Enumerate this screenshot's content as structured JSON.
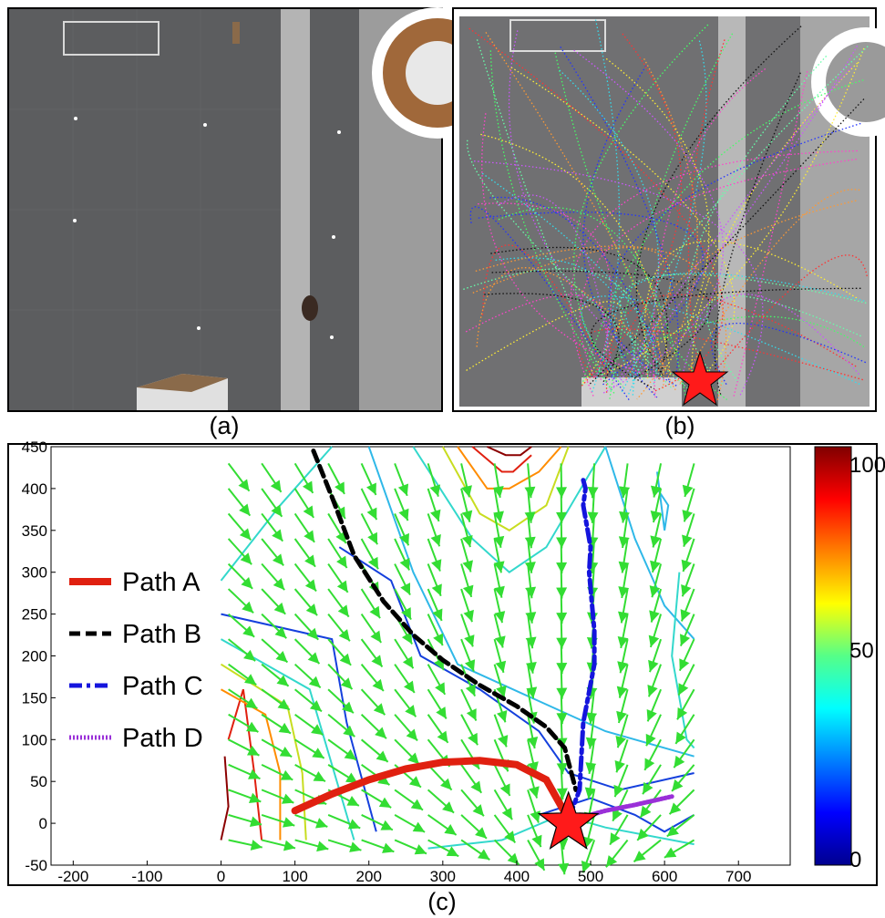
{
  "captions": {
    "a": "(a)",
    "b": "(b)",
    "c": "(c)"
  },
  "colors": {
    "floor": "#5c5d5f",
    "walkway": "#b4b4b4",
    "arrow": "#33dd33",
    "path_a": "#e02010",
    "path_b": "#000000",
    "path_c": "#1515dd",
    "path_d": "#9a30d8",
    "star": "#ff1a1a"
  },
  "chart_data": {
    "type": "contour",
    "title": "",
    "xlabel": "",
    "ylabel": "",
    "xlim": [
      -230,
      770
    ],
    "ylim": [
      -50,
      450
    ],
    "xticks": [
      "-200",
      "-100",
      "0",
      "100",
      "200",
      "300",
      "400",
      "500",
      "600",
      "700"
    ],
    "yticks": [
      "450",
      "400",
      "350",
      "300",
      "250",
      "200",
      "150",
      "100",
      "50",
      "0",
      "-50"
    ],
    "legend_position": "left",
    "legend": [
      {
        "label": "Path A",
        "style": "solid",
        "color": "#e02010"
      },
      {
        "label": "Path B",
        "style": "dashed",
        "color": "#000000"
      },
      {
        "label": "Path C",
        "style": "dash-dot",
        "color": "#1515dd"
      },
      {
        "label": "Path D",
        "style": "dotted",
        "color": "#9a30d8"
      }
    ],
    "series": [
      {
        "name": "Path A",
        "x": [
          100,
          150,
          200,
          250,
          300,
          350,
          400,
          440,
          470
        ],
        "y": [
          15,
          35,
          52,
          65,
          73,
          75,
          70,
          52,
          5
        ]
      },
      {
        "name": "Path B",
        "x": [
          125,
          150,
          180,
          220,
          260,
          300,
          350,
          400,
          440,
          465,
          480
        ],
        "y": [
          445,
          390,
          320,
          265,
          225,
          195,
          165,
          140,
          115,
          90,
          40
        ]
      },
      {
        "name": "Path C",
        "x": [
          470,
          485,
          490,
          505,
          505,
          498,
          500,
          490,
          493,
          490
        ],
        "y": [
          5,
          40,
          120,
          190,
          230,
          300,
          330,
          380,
          400,
          410
        ]
      },
      {
        "name": "Path D",
        "x": [
          480,
          520,
          560,
          610
        ],
        "y": [
          5,
          15,
          22,
          32
        ]
      }
    ],
    "goal_marker": {
      "x": 470,
      "y": 0,
      "shape": "star"
    },
    "colorbar": {
      "min": 0,
      "max": 100,
      "labels": [
        "100",
        "50",
        "0"
      ]
    }
  }
}
